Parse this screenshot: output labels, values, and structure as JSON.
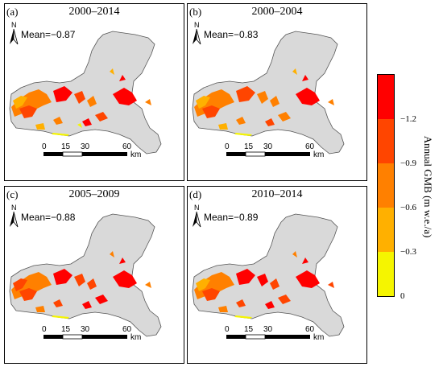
{
  "panels": [
    {
      "label": "(a)",
      "title": "2000–2014",
      "mean": "Mean=−0.87"
    },
    {
      "label": "(b)",
      "title": "2000–2004",
      "mean": "Mean=−0.83"
    },
    {
      "label": "(c)",
      "title": "2005–2009",
      "mean": "Mean=−0.88"
    },
    {
      "label": "(d)",
      "title": "2010–2014",
      "mean": "Mean=−0.89"
    }
  ],
  "north_label": "N",
  "scale_bar": {
    "ticks": [
      "0",
      "15",
      "30",
      "60"
    ],
    "unit": "km"
  },
  "legend": {
    "title": "Annual GMB (m w.e./a)",
    "tick_labels": [
      "−1.2",
      "−0.9",
      "−0.6",
      "−0.3",
      "0"
    ],
    "colors": [
      "#ff0000",
      "#ff4500",
      "#ff8000",
      "#ffb000",
      "#f5f500"
    ]
  },
  "colors": {
    "basin_fill": "#d9d9d9",
    "basin_stroke": "#555555"
  }
}
